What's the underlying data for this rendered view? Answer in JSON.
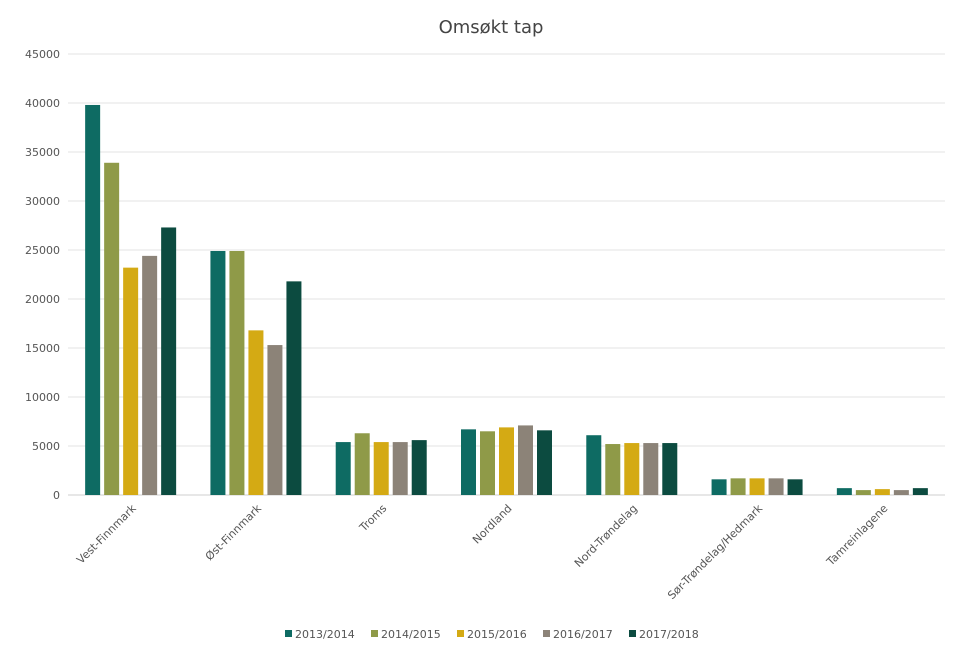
{
  "chart_data": {
    "type": "bar",
    "title": "Omsøkt tap",
    "xlabel": "",
    "ylabel": "",
    "ylim": [
      0,
      45000
    ],
    "yticks": [
      0,
      5000,
      10000,
      15000,
      20000,
      25000,
      30000,
      35000,
      40000,
      45000
    ],
    "grid": true,
    "legend_position": "bottom",
    "categories": [
      "Vest-Finnmark",
      "Øst-Finnmark",
      "Troms",
      "Nordland",
      "Nord-Trøndelag",
      "Sør-Trøndelag/Hedmark",
      "Tamreinlagene"
    ],
    "series": [
      {
        "name": "2013/2014",
        "color": "#0e6b63",
        "values": [
          39800,
          24900,
          5400,
          6700,
          6100,
          1600,
          700
        ]
      },
      {
        "name": "2014/2015",
        "color": "#8f9a48",
        "values": [
          33900,
          24900,
          6300,
          6500,
          5200,
          1700,
          500
        ]
      },
      {
        "name": "2015/2016",
        "color": "#d4aa14",
        "values": [
          23200,
          16800,
          5400,
          6900,
          5300,
          1700,
          600
        ]
      },
      {
        "name": "2016/2017",
        "color": "#8c8378",
        "values": [
          24400,
          15300,
          5400,
          7100,
          5300,
          1700,
          500
        ]
      },
      {
        "name": "2017/2018",
        "color": "#0c4b40",
        "values": [
          27300,
          21800,
          5600,
          6600,
          5300,
          1600,
          700
        ]
      }
    ]
  }
}
